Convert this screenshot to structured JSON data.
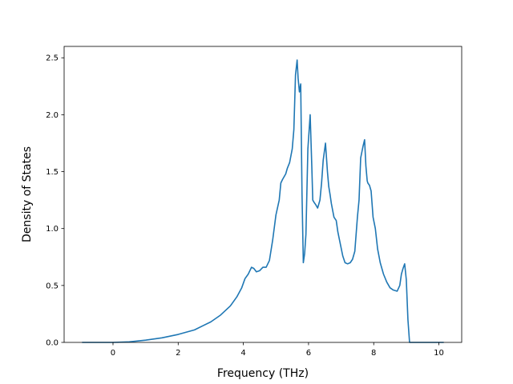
{
  "chart_data": {
    "type": "line",
    "title": "",
    "xlabel": "Frequency (THz)",
    "ylabel": "Density of States",
    "xlim": [
      -1.5,
      10.7
    ],
    "ylim": [
      0.0,
      2.6
    ],
    "xticks": [
      0,
      2,
      4,
      6,
      8,
      10
    ],
    "xtick_labels": [
      "0",
      "2",
      "4",
      "6",
      "8",
      "10"
    ],
    "yticks": [
      0.0,
      0.5,
      1.0,
      1.5,
      2.0,
      2.5
    ],
    "ytick_labels": [
      "0.0",
      "0.5",
      "1.0",
      "1.5",
      "2.0",
      "2.5"
    ],
    "grid": false,
    "series": [
      {
        "color": "#1f77b4",
        "x": [
          -0.95,
          0.0,
          0.5,
          1.0,
          1.5,
          2.0,
          2.5,
          3.0,
          3.3,
          3.6,
          3.8,
          3.95,
          4.05,
          4.15,
          4.25,
          4.32,
          4.4,
          4.5,
          4.6,
          4.7,
          4.8,
          4.9,
          5.0,
          5.1,
          5.15,
          5.2,
          5.3,
          5.35,
          5.42,
          5.5,
          5.55,
          5.6,
          5.65,
          5.68,
          5.72,
          5.76,
          5.8,
          5.84,
          5.88,
          5.92,
          5.98,
          6.05,
          6.1,
          6.13,
          6.17,
          6.22,
          6.28,
          6.35,
          6.4,
          6.45,
          6.52,
          6.58,
          6.62,
          6.66,
          6.7,
          6.78,
          6.85,
          6.9,
          6.95,
          7.05,
          7.12,
          7.2,
          7.28,
          7.35,
          7.42,
          7.5,
          7.55,
          7.6,
          7.67,
          7.72,
          7.76,
          7.8,
          7.82,
          7.87,
          7.92,
          7.98,
          8.05,
          8.12,
          8.2,
          8.3,
          8.4,
          8.5,
          8.6,
          8.72,
          8.8,
          8.85,
          8.9,
          8.95,
          9.0,
          9.05,
          9.1,
          9.15,
          9.18,
          9.22,
          9.28,
          9.35,
          10.15
        ],
        "y": [
          0.0,
          0.0,
          0.005,
          0.02,
          0.04,
          0.07,
          0.11,
          0.18,
          0.24,
          0.32,
          0.4,
          0.48,
          0.56,
          0.6,
          0.66,
          0.65,
          0.62,
          0.63,
          0.66,
          0.66,
          0.72,
          0.9,
          1.12,
          1.25,
          1.4,
          1.43,
          1.48,
          1.53,
          1.58,
          1.7,
          1.87,
          2.35,
          2.48,
          2.32,
          2.2,
          2.27,
          1.3,
          0.7,
          0.78,
          0.95,
          1.7,
          2.0,
          1.55,
          1.25,
          1.23,
          1.21,
          1.18,
          1.25,
          1.4,
          1.6,
          1.75,
          1.5,
          1.37,
          1.3,
          1.22,
          1.1,
          1.07,
          0.97,
          0.9,
          0.76,
          0.7,
          0.69,
          0.7,
          0.73,
          0.8,
          1.1,
          1.25,
          1.62,
          1.72,
          1.78,
          1.55,
          1.42,
          1.4,
          1.38,
          1.33,
          1.1,
          1.0,
          0.82,
          0.7,
          0.6,
          0.53,
          0.48,
          0.46,
          0.45,
          0.5,
          0.6,
          0.65,
          0.69,
          0.55,
          0.2,
          0.0,
          0.0,
          0.0,
          0.0,
          0.0,
          0.0,
          0.0
        ]
      }
    ]
  }
}
